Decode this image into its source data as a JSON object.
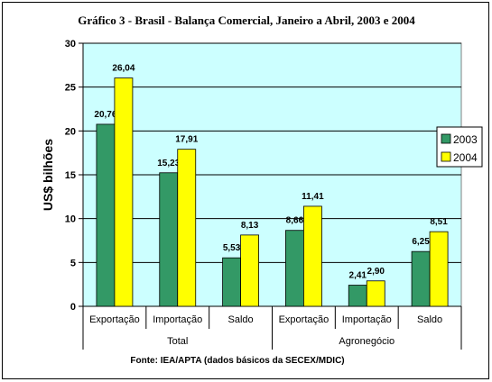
{
  "chart_data": {
    "type": "bar",
    "title": "Gráfico 3 - Brasil - Balança Comercial, Janeiro a Abril, 2003 e 2004",
    "ylabel": "US$ bilhões",
    "ylim": [
      0,
      30
    ],
    "yticks": [
      "0",
      "5",
      "10",
      "15",
      "20",
      "25",
      "30"
    ],
    "grid": true,
    "legend_position": "right",
    "groups": [
      "Total",
      "Agronegócio"
    ],
    "categories": [
      "Exportação",
      "Importação",
      "Saldo",
      "Exportação",
      "Importação",
      "Saldo"
    ],
    "series": [
      {
        "name": "2003",
        "color": "#339966",
        "values": [
          20.76,
          15.23,
          5.53,
          8.66,
          2.41,
          6.25
        ],
        "labels": [
          "20,76",
          "15,23",
          "5,53",
          "8,66",
          "2,41",
          "6,25"
        ]
      },
      {
        "name": "2004",
        "color": "#ffff00",
        "values": [
          26.04,
          17.91,
          8.13,
          11.41,
          2.9,
          8.51
        ],
        "labels": [
          "26,04",
          "17,91",
          "8,13",
          "11,41",
          "2,90",
          "8,51"
        ]
      }
    ],
    "plot_background": "#ccffff",
    "source": "Fonte: IEA/APTA (dados básicos da SECEX/MDIC)"
  }
}
